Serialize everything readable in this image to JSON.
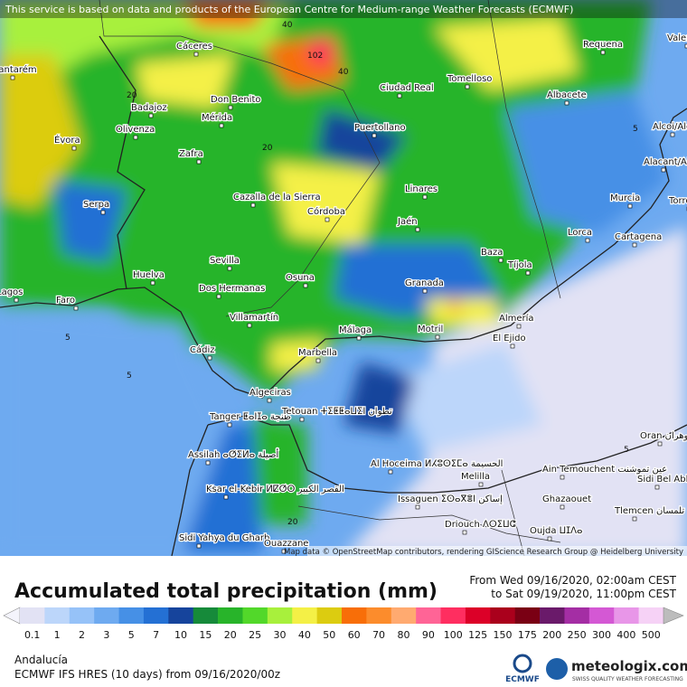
{
  "map": {
    "attribution": "This service is based on data and products of the European Centre for Medium-range Weather Forecasts (ECMWF)",
    "credits": "Map data © OpenStreetMap contributors, rendering GIScience Research Group @ Heidelberg University",
    "contour_labels": [
      102,
      40,
      40,
      20,
      20,
      5,
      5,
      5,
      20,
      5
    ],
    "cities": [
      "Cáceres",
      "Requena",
      "Valencia",
      "Tomelloso",
      "Ciudad Real",
      "Albacete",
      "Badajoz",
      "Don Benito",
      "Mérida",
      "Olivenza",
      "Évora",
      "Puertollano",
      "Alcoi/Alcoy",
      "Zafra",
      "Alacant/Alicante",
      "Serpa",
      "Cazalla de la Sierra",
      "Córdoba",
      "Linares",
      "Jaén",
      "Murcia",
      "Torrevieja",
      "Lorca",
      "Cartagena",
      "Baza",
      "Tíjola",
      "Sevilla",
      "Huelva",
      "Dos Hermanas",
      "Osuna",
      "Granada",
      "Faro",
      "Lagos",
      "Santarém",
      "Villamartín",
      "Málaga",
      "Motril",
      "Almería",
      "El Ejido",
      "Cádiz",
      "Marbella",
      "Algeciras",
      "Tanger ⵟⴰⵏⵊⴰ طنجة",
      "Tetouan ⵜⵉⵟⵟⴰⵡⵉⵏ تطوان",
      "Assilah ⴰⵚⵉⵍⴰ أصيلة",
      "Ksar el-Kebir ⵍⵇⵚⵔ القصر الكبير",
      "Sidi Yahya du Gharb",
      "Ouazzane",
      "Al Hoceima ⵍⵃⵓⵙⵉⵎⴰ الحسيمة",
      "Issaguen ⵉⵙⴰⴳⴻⵏ إساكن",
      "Melilla",
      "Driouch ⴷⵔⵉⵡⵛ",
      "Ain Temouchent عين تموشنت",
      "Ghazaouet",
      "Tlemcen تلمسان",
      "Oujda ⵡⵊⴷⴰ",
      "Oran وهران",
      "Sidi Bel Abbès"
    ]
  },
  "legend": {
    "title": "Accumulated total precipitation (mm)",
    "period_from": "From Wed 09/16/2020, 02:00am CEST",
    "period_to": "to Sat 09/19/2020, 11:00pm CEST",
    "ticks": [
      0.1,
      1,
      2,
      3,
      5,
      7,
      10,
      15,
      20,
      25,
      30,
      40,
      50,
      60,
      70,
      80,
      90,
      100,
      125,
      150,
      175,
      200,
      250,
      300,
      400,
      500
    ],
    "colors": [
      "#e2e2f4",
      "#bcd6fa",
      "#96c2f8",
      "#6eaaf0",
      "#4690e6",
      "#2470d4",
      "#16449c",
      "#168a3a",
      "#28b42a",
      "#52d82a",
      "#a8f03c",
      "#f4f046",
      "#dccc10",
      "#f86e08",
      "#fc8c2c",
      "#ffaa70",
      "#ff6496",
      "#ff2e60",
      "#dc0028",
      "#aa001c",
      "#7a0014",
      "#6a1a6a",
      "#a42ea4",
      "#d458d4",
      "#e896e8",
      "#f6d2f6"
    ]
  },
  "footer": {
    "region": "Andalucía",
    "model": "ECMWF IFS HRES (10 days) from 09/16/2020/00z",
    "ecmwf": "ECMWF",
    "brand": "meteologix.com",
    "tagline": "SWISS QUALITY WEATHER FORECASTING"
  }
}
